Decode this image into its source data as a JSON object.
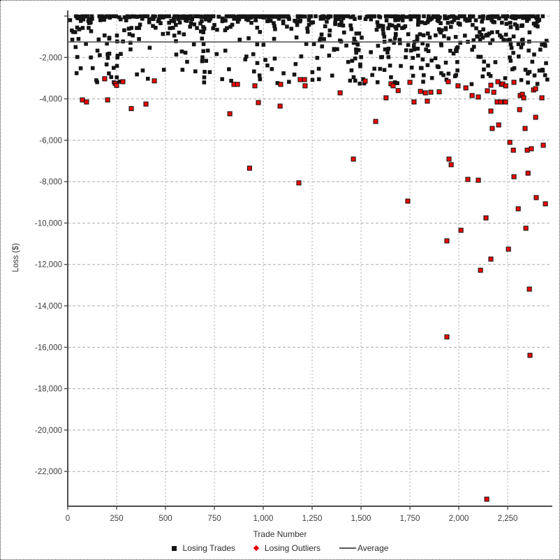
{
  "chart_data": {
    "type": "scatter",
    "title": "",
    "xlabel": "Trade Number",
    "ylabel": "Loss ($)",
    "xlim": [
      0,
      2464
    ],
    "ylim": [
      -23680,
      270
    ],
    "grid": {
      "on": true,
      "color": "#ababab"
    },
    "legend_position": "bottom-center",
    "x_ticks": [
      {
        "v": 0,
        "label": "0"
      },
      {
        "v": 250,
        "label": "250"
      },
      {
        "v": 500,
        "label": "500"
      },
      {
        "v": 750,
        "label": "750"
      },
      {
        "v": 1000,
        "label": "1,000"
      },
      {
        "v": 1250,
        "label": "1,250"
      },
      {
        "v": 1500,
        "label": "1,500"
      },
      {
        "v": 1750,
        "label": "1,750"
      },
      {
        "v": 2000,
        "label": "2,000"
      },
      {
        "v": 2250,
        "label": "2,250"
      }
    ],
    "y_ticks": [
      {
        "v": 0,
        "label": ""
      },
      {
        "v": -2000,
        "label": "-2,000"
      },
      {
        "v": -4000,
        "label": "-4,000"
      },
      {
        "v": -6000,
        "label": "-6,000"
      },
      {
        "v": -8000,
        "label": "-8,000"
      },
      {
        "v": -10000,
        "label": "-10,000"
      },
      {
        "v": -12000,
        "label": "-12,000"
      },
      {
        "v": -14000,
        "label": "-14,000"
      },
      {
        "v": -16000,
        "label": "-16,000"
      },
      {
        "v": -18000,
        "label": "-18,000"
      },
      {
        "v": -20000,
        "label": "-20,000"
      },
      {
        "v": -22000,
        "label": "-22,000"
      }
    ],
    "average_line": {
      "label": "Average",
      "value": -1250,
      "color": "#5a5a5a"
    },
    "series": [
      {
        "name": "Losing Trades",
        "marker": "square",
        "color": "#141414",
        "description": "dense cloud of losing trades between 0 and about -3,300 dollars across trades 0-2,460; most losses shallower than -1,250 (the average)",
        "cloud": {
          "seed": 20240612,
          "components": [
            {
              "count": 700,
              "x": [
                5,
                2455
              ],
              "depth": [
                10,
                3300
              ],
              "skew": 4.0
            },
            {
              "count": 80,
              "x": [
                1450,
                2455
              ],
              "depth": [
                900,
                3300
              ],
              "skew": 1.8
            }
          ]
        }
      },
      {
        "name": "Losing Outliers",
        "marker": "diamond",
        "color": "#fe0000",
        "edge": "#141414",
        "points": [
          [
            75,
            -4050
          ],
          [
            96,
            -4150
          ],
          [
            189,
            -3030
          ],
          [
            204,
            -4050
          ],
          [
            243,
            -3250
          ],
          [
            250,
            -3350
          ],
          [
            282,
            -3170
          ],
          [
            325,
            -4470
          ],
          [
            400,
            -4250
          ],
          [
            443,
            -3130
          ],
          [
            829,
            -4720
          ],
          [
            850,
            -3300
          ],
          [
            868,
            -3300
          ],
          [
            930,
            -7350
          ],
          [
            957,
            -3370
          ],
          [
            975,
            -4180
          ],
          [
            1086,
            -4350
          ],
          [
            1089,
            -3300
          ],
          [
            1182,
            -8060
          ],
          [
            1189,
            -3070
          ],
          [
            1211,
            -3070
          ],
          [
            1214,
            -3370
          ],
          [
            1393,
            -3710
          ],
          [
            1461,
            -6910
          ],
          [
            1521,
            -3140
          ],
          [
            1575,
            -5090
          ],
          [
            1628,
            -3950
          ],
          [
            1653,
            -3270
          ],
          [
            1664,
            -3370
          ],
          [
            1690,
            -3600
          ],
          [
            1739,
            -8940
          ],
          [
            1750,
            -3200
          ],
          [
            1771,
            -4150
          ],
          [
            1804,
            -3640
          ],
          [
            1829,
            -3710
          ],
          [
            1839,
            -4110
          ],
          [
            1857,
            -3680
          ],
          [
            1900,
            -3660
          ],
          [
            1939,
            -10860
          ],
          [
            1939,
            -15500
          ],
          [
            1946,
            -3170
          ],
          [
            1950,
            -6910
          ],
          [
            1961,
            -7180
          ],
          [
            1996,
            -3370
          ],
          [
            2011,
            -10350
          ],
          [
            2036,
            -3470
          ],
          [
            2046,
            -7890
          ],
          [
            2068,
            -3840
          ],
          [
            2100,
            -3910
          ],
          [
            2100,
            -7930
          ],
          [
            2111,
            -12280
          ],
          [
            2139,
            -9750
          ],
          [
            2143,
            -23340
          ],
          [
            2146,
            -3610
          ],
          [
            2164,
            -3340
          ],
          [
            2164,
            -4590
          ],
          [
            2164,
            -11740
          ],
          [
            2171,
            -5430
          ],
          [
            2179,
            -3680
          ],
          [
            2196,
            -4150
          ],
          [
            2200,
            -3170
          ],
          [
            2204,
            -5260
          ],
          [
            2214,
            -4150
          ],
          [
            2218,
            -3300
          ],
          [
            2225,
            -3280
          ],
          [
            2239,
            -4150
          ],
          [
            2240,
            -3370
          ],
          [
            2254,
            -11260
          ],
          [
            2261,
            -6100
          ],
          [
            2279,
            -6480
          ],
          [
            2282,
            -3200
          ],
          [
            2282,
            -7760
          ],
          [
            2304,
            -9310
          ],
          [
            2311,
            -4520
          ],
          [
            2314,
            -3840
          ],
          [
            2325,
            -3780
          ],
          [
            2332,
            -3950
          ],
          [
            2339,
            -5430
          ],
          [
            2343,
            -10250
          ],
          [
            2350,
            -6480
          ],
          [
            2354,
            -7590
          ],
          [
            2361,
            -13190
          ],
          [
            2364,
            -16390
          ],
          [
            2371,
            -6410
          ],
          [
            2382,
            -3570
          ],
          [
            2393,
            -3510
          ],
          [
            2393,
            -4890
          ],
          [
            2396,
            -8770
          ],
          [
            2425,
            -3950
          ],
          [
            2432,
            -6240
          ],
          [
            2443,
            -9070
          ]
        ]
      }
    ]
  }
}
